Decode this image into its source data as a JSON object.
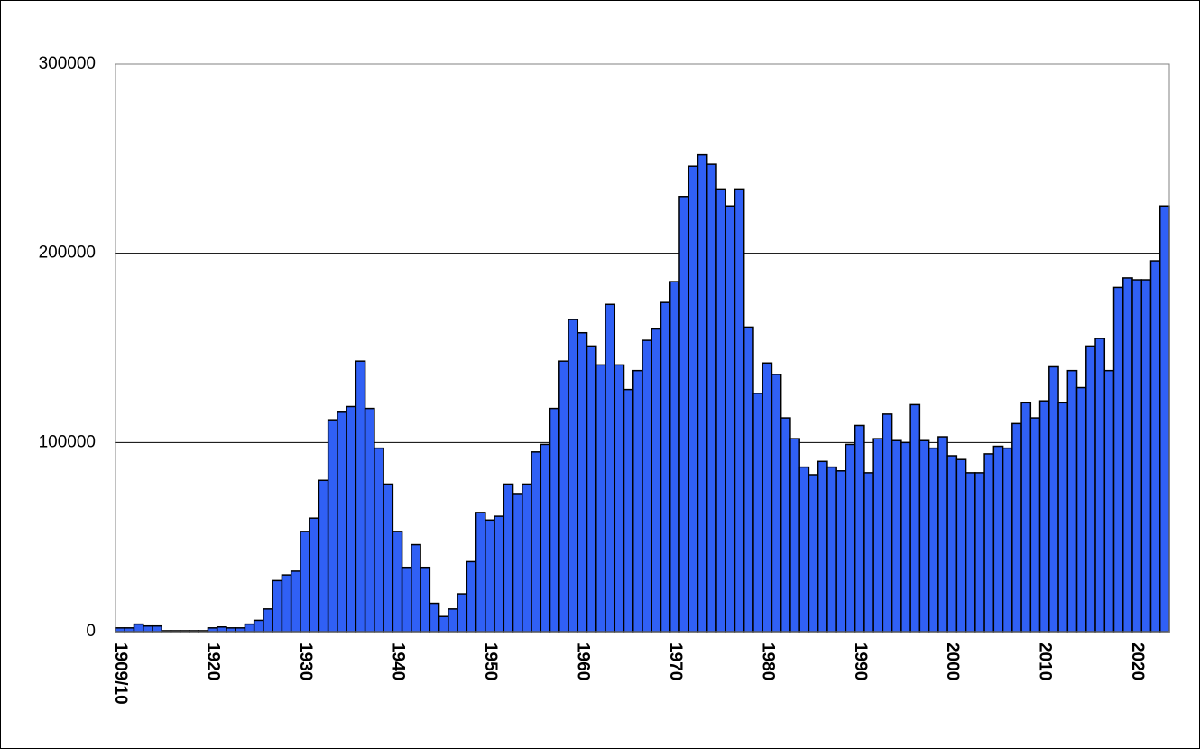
{
  "chart_data": {
    "type": "bar",
    "categories": [
      "1909/10",
      null,
      null,
      null,
      null,
      null,
      null,
      null,
      null,
      null,
      "1920",
      null,
      null,
      null,
      null,
      null,
      null,
      null,
      null,
      null,
      "1930",
      null,
      null,
      null,
      null,
      null,
      null,
      null,
      null,
      null,
      "1940",
      null,
      null,
      null,
      null,
      null,
      null,
      null,
      null,
      null,
      "1950",
      null,
      null,
      null,
      null,
      null,
      null,
      null,
      null,
      null,
      "1960",
      null,
      null,
      null,
      null,
      null,
      null,
      null,
      null,
      null,
      "1970",
      null,
      null,
      null,
      null,
      null,
      null,
      null,
      null,
      null,
      "1980",
      null,
      null,
      null,
      null,
      null,
      null,
      null,
      null,
      null,
      "1990",
      null,
      null,
      null,
      null,
      null,
      null,
      null,
      null,
      null,
      "2000",
      null,
      null,
      null,
      null,
      null,
      null,
      null,
      null,
      null,
      "2010",
      null,
      null,
      null,
      null,
      null,
      null,
      null,
      null,
      null,
      "2020",
      null,
      null,
      null
    ],
    "values": [
      2000,
      2000,
      4000,
      3000,
      3000,
      500,
      500,
      500,
      500,
      500,
      2000,
      2500,
      2000,
      2000,
      4000,
      6000,
      12000,
      27000,
      30000,
      32000,
      53000,
      60000,
      80000,
      112000,
      116000,
      119000,
      143000,
      118000,
      97000,
      78000,
      53000,
      34000,
      46000,
      34000,
      15000,
      8000,
      12000,
      20000,
      37000,
      63000,
      59000,
      61000,
      78000,
      73000,
      78000,
      95000,
      99000,
      118000,
      143000,
      165000,
      158000,
      151000,
      141000,
      173000,
      141000,
      128000,
      138000,
      154000,
      160000,
      174000,
      185000,
      230000,
      246000,
      252000,
      247000,
      234000,
      225000,
      234000,
      161000,
      126000,
      142000,
      136000,
      113000,
      102000,
      87000,
      83000,
      90000,
      87000,
      85000,
      99000,
      109000,
      84000,
      102000,
      115000,
      101000,
      100000,
      120000,
      101000,
      97000,
      103000,
      93000,
      91000,
      84000,
      84000,
      94000,
      98000,
      97000,
      110000,
      121000,
      113000,
      122000,
      140000,
      121000,
      138000,
      129000,
      151000,
      155000,
      138000,
      182000,
      187000,
      186000,
      186000,
      196000,
      225000
    ],
    "color": "#3060f5",
    "ylim": [
      0,
      300000
    ],
    "yticks": [
      0,
      100000,
      200000,
      300000
    ],
    "grid": true
  }
}
